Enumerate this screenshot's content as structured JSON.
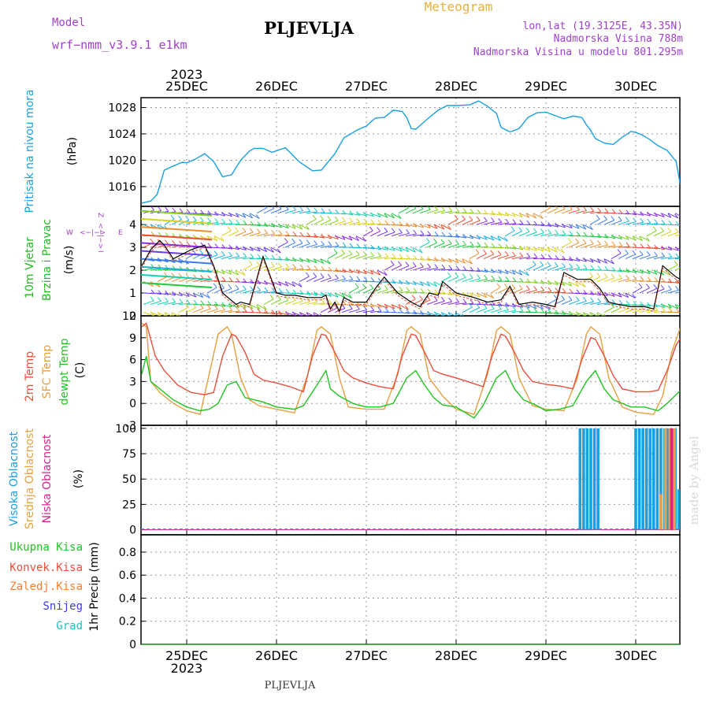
{
  "header": {
    "model_label": "Model",
    "model_value": "wrf−nmm_v3.9.1  e1km",
    "title": "PLJEVLJA",
    "meteogram_label": "Meteogram",
    "lonlat": "lon,lat (19.3125E, 43.35N)",
    "elevation": "Nadmorska Visina 788m",
    "model_elevation": "Nadmorska Visina u modelu 801.295m"
  },
  "top_axis": {
    "year": "2023",
    "days": [
      "25DEC",
      "26DEC",
      "27DEC",
      "28DEC",
      "29DEC",
      "30DEC"
    ]
  },
  "bottom_axis": {
    "year": "2023",
    "days": [
      "25DEC",
      "26DEC",
      "27DEC",
      "28DEC",
      "29DEC",
      "30DEC"
    ],
    "station": "PLJEVLJA"
  },
  "watermark": "made by Angel",
  "colors": {
    "pressure": "#1aa0e0",
    "temp2m": "#e8503c",
    "sfc": "#e8a040",
    "dewpt": "#22c322",
    "cloud_high": "#1aa0e0",
    "cloud_mid": "#e8a040",
    "cloud_low": "#e0208c",
    "rain_total": "#22c322",
    "rain_conv": "#e8503c",
    "rain_frozen": "#f08030",
    "snow": "#3c3ce0",
    "hail": "#20c0c0",
    "wind_label": "#22bb22",
    "compass": "#a040d0"
  },
  "panels": {
    "pressure": {
      "title": "Pritisak na nivou mora",
      "unit": "(hPa)"
    },
    "wind": {
      "title1": "10m Vjetar",
      "title2": "Brzina i Pravac",
      "unit": "(m/s)",
      "compass_w": "W",
      "compass_e": "E",
      "compass_arrow": "<−|−>",
      "compass_z": "Z",
      "compass_i": "I",
      "compass_arrow_v": "<−|−>"
    },
    "temp": {
      "label_2m": "2m Temp",
      "label_sfc": "SFC Temp",
      "label_dewpt": "dewpt Temp",
      "unit": "(C)"
    },
    "cloud": {
      "label_high": "Visoka Oblacnost",
      "label_mid": "Srednja Oblacnost",
      "label_low": "Niska Oblacnost",
      "unit": "(%)"
    },
    "precip": {
      "legend": [
        "Ukupna Kisa",
        "Konvek.Kisa",
        "Zaledj.Kisa",
        "Snijeg",
        "Grad"
      ],
      "unit": "1hr Precip (mm)"
    }
  },
  "chart_data": [
    {
      "type": "line",
      "title": "",
      "ylabel": "Pritisak na nivou mora (hPa)",
      "x_unit": "days from 25DEC 00UTC",
      "xlim": [
        -0.5,
        5.5
      ],
      "ylim": [
        1013,
        1029.5
      ],
      "yticks": [
        1016,
        1020,
        1024,
        1028
      ],
      "series": [
        {
          "name": "Pritisak na nivou mora",
          "x": [
            -0.5,
            -0.4,
            -0.33,
            -0.25,
            -0.17,
            -0.05,
            0.0,
            0.1,
            0.2,
            0.3,
            0.4,
            0.5,
            0.6,
            0.7,
            0.75,
            0.85,
            0.95,
            1.1,
            1.25,
            1.4,
            1.5,
            1.65,
            1.75,
            1.9,
            2.0,
            2.1,
            2.2,
            2.3,
            2.4,
            2.45,
            2.5,
            2.55,
            2.6,
            2.7,
            2.8,
            2.9,
            3.0,
            3.15,
            3.25,
            3.35,
            3.45,
            3.5,
            3.6,
            3.7,
            3.8,
            3.9,
            4.0,
            4.1,
            4.2,
            4.3,
            4.4,
            4.45,
            4.5,
            4.55,
            4.65,
            4.75,
            4.85,
            4.95,
            5.05,
            5.15,
            5.25,
            5.35,
            5.45,
            5.5
          ],
          "values": [
            1013.5,
            1013.8,
            1014.8,
            1018.5,
            1019.0,
            1019.7,
            1019.6,
            1020.2,
            1021.0,
            1019.8,
            1017.5,
            1017.8,
            1020.0,
            1021.4,
            1021.8,
            1021.8,
            1021.2,
            1021.9,
            1019.8,
            1018.4,
            1018.5,
            1021.0,
            1023.4,
            1024.6,
            1025.2,
            1026.4,
            1026.5,
            1027.6,
            1027.4,
            1026.5,
            1024.8,
            1024.7,
            1025.3,
            1026.5,
            1027.6,
            1028.3,
            1028.3,
            1028.4,
            1029.0,
            1028.2,
            1027.1,
            1025.0,
            1024.3,
            1024.8,
            1026.5,
            1027.2,
            1027.3,
            1026.8,
            1026.3,
            1026.7,
            1026.5,
            1025.4,
            1024.5,
            1023.3,
            1022.6,
            1022.4,
            1023.5,
            1024.4,
            1024.0,
            1023.2,
            1022.2,
            1021.5,
            1019.8,
            1016.0
          ]
        }
      ]
    },
    {
      "type": "line",
      "title": "",
      "ylabel": "10m Vjetar Brzina i Pravac (m/s)",
      "x_unit": "days from 25DEC 00UTC",
      "xlim": [
        -0.5,
        5.5
      ],
      "ylim": [
        0,
        4.8
      ],
      "yticks": [
        0,
        1,
        2,
        3,
        4
      ],
      "series": [
        {
          "name": "Brzina",
          "x": [
            -0.5,
            -0.4,
            -0.3,
            -0.25,
            -0.15,
            -0.05,
            0.05,
            0.2,
            0.3,
            0.4,
            0.55,
            0.6,
            0.7,
            0.85,
            1.0,
            1.1,
            1.2,
            1.35,
            1.5,
            1.55,
            1.6,
            1.65,
            1.7,
            1.75,
            1.85,
            2.0,
            2.1,
            2.2,
            2.35,
            2.5,
            2.6,
            2.7,
            2.8,
            2.85,
            3.0,
            3.1,
            3.2,
            3.35,
            3.5,
            3.6,
            3.7,
            3.85,
            4.0,
            4.1,
            4.2,
            4.35,
            4.5,
            4.6,
            4.7,
            4.8,
            4.95,
            5.1,
            5.2,
            5.3,
            5.45,
            5.5
          ],
          "values": [
            2.2,
            2.9,
            3.3,
            3.1,
            2.5,
            2.7,
            2.9,
            3.1,
            2.2,
            1.0,
            0.5,
            0.6,
            0.5,
            2.6,
            1.0,
            0.9,
            0.9,
            0.8,
            0.8,
            0.9,
            0.3,
            0.6,
            0.2,
            0.8,
            0.6,
            0.6,
            1.2,
            1.7,
            1.0,
            0.6,
            0.4,
            1.0,
            0.9,
            1.5,
            1.0,
            0.9,
            0.8,
            0.6,
            0.7,
            1.3,
            0.5,
            0.6,
            0.5,
            0.4,
            1.9,
            1.6,
            1.6,
            1.2,
            0.6,
            0.5,
            0.4,
            0.4,
            0.3,
            2.2,
            1.7,
            1.6
          ]
        }
      ]
    },
    {
      "type": "line",
      "title": "",
      "ylabel": "Temperature (C)",
      "x_unit": "days from 25DEC 00UTC",
      "xlim": [
        -0.5,
        5.5
      ],
      "ylim": [
        -3,
        12
      ],
      "yticks": [
        -3,
        0,
        3,
        6,
        9,
        12
      ],
      "series": [
        {
          "name": "2m Temp",
          "x": [
            -0.5,
            -0.45,
            -0.35,
            -0.25,
            -0.1,
            0.05,
            0.2,
            0.3,
            0.4,
            0.5,
            0.55,
            0.65,
            0.75,
            0.85,
            1.0,
            1.15,
            1.3,
            1.4,
            1.5,
            1.55,
            1.65,
            1.75,
            1.85,
            2.0,
            2.15,
            2.3,
            2.4,
            2.5,
            2.55,
            2.65,
            2.75,
            2.85,
            3.0,
            3.15,
            3.3,
            3.4,
            3.5,
            3.55,
            3.65,
            3.75,
            3.85,
            4.0,
            4.15,
            4.3,
            4.4,
            4.5,
            4.55,
            4.65,
            4.75,
            4.85,
            5.0,
            5.15,
            5.25,
            5.35,
            5.45,
            5.5
          ],
          "values": [
            10.5,
            11.0,
            6.5,
            4.5,
            2.5,
            1.5,
            1.2,
            1.5,
            6.5,
            9.5,
            9.2,
            7.0,
            4.0,
            3.2,
            2.8,
            2.3,
            1.6,
            6.5,
            9.5,
            9.3,
            7.0,
            4.5,
            3.5,
            2.8,
            2.3,
            2.0,
            6.5,
            9.5,
            9.3,
            7.0,
            4.5,
            4.0,
            3.5,
            2.9,
            2.3,
            6.5,
            9.5,
            9.2,
            7.0,
            4.5,
            3.0,
            2.6,
            2.4,
            2.0,
            6.0,
            9.0,
            8.8,
            6.5,
            3.8,
            2.0,
            1.6,
            1.6,
            1.8,
            4.5,
            8.0,
            9.0
          ]
        },
        {
          "name": "SFC Temp",
          "x": [
            -0.5,
            -0.45,
            -0.4,
            -0.3,
            -0.15,
            0.0,
            0.15,
            0.25,
            0.35,
            0.45,
            0.5,
            0.6,
            0.7,
            0.8,
            1.0,
            1.2,
            1.35,
            1.45,
            1.5,
            1.6,
            1.7,
            1.8,
            2.0,
            2.2,
            2.35,
            2.45,
            2.5,
            2.6,
            2.7,
            2.85,
            3.0,
            3.2,
            3.35,
            3.45,
            3.5,
            3.6,
            3.7,
            3.85,
            4.0,
            4.2,
            4.35,
            4.45,
            4.5,
            4.6,
            4.7,
            4.85,
            5.0,
            5.2,
            5.3,
            5.4,
            5.5
          ],
          "values": [
            11.0,
            10.5,
            3.0,
            1.5,
            0.0,
            -1.0,
            -1.5,
            4.0,
            9.5,
            10.5,
            9.5,
            3.5,
            0.5,
            -0.3,
            -0.8,
            -1.3,
            4.0,
            10.0,
            10.5,
            9.5,
            3.5,
            -0.5,
            -0.8,
            -0.8,
            4.0,
            10.0,
            10.5,
            9.5,
            3.5,
            1.0,
            -0.8,
            -1.5,
            4.0,
            10.0,
            10.5,
            9.5,
            3.5,
            -0.3,
            -0.8,
            -1.0,
            3.5,
            9.5,
            10.5,
            9.5,
            3.5,
            -0.5,
            -1.2,
            -1.5,
            1.0,
            7.0,
            10.5
          ]
        },
        {
          "name": "dewpt Temp",
          "x": [
            -0.5,
            -0.45,
            -0.4,
            -0.3,
            -0.15,
            0.0,
            0.15,
            0.25,
            0.35,
            0.45,
            0.55,
            0.65,
            0.75,
            0.85,
            1.0,
            1.2,
            1.3,
            1.45,
            1.55,
            1.6,
            1.7,
            1.85,
            2.0,
            2.15,
            2.3,
            2.45,
            2.55,
            2.65,
            2.75,
            2.85,
            3.0,
            3.2,
            3.3,
            3.45,
            3.55,
            3.65,
            3.75,
            3.9,
            4.0,
            4.15,
            4.3,
            4.45,
            4.55,
            4.65,
            4.75,
            4.95,
            5.1,
            5.25,
            5.35,
            5.5
          ],
          "values": [
            4.0,
            6.5,
            3.0,
            2.0,
            0.5,
            -0.5,
            -1.0,
            -0.8,
            0.0,
            2.5,
            3.0,
            0.8,
            0.5,
            0.2,
            -0.5,
            -0.8,
            -0.3,
            2.5,
            4.5,
            2.0,
            1.0,
            0.0,
            -0.5,
            -0.5,
            0.0,
            3.5,
            4.5,
            2.5,
            0.8,
            -0.2,
            -0.5,
            -2.0,
            -0.3,
            3.5,
            4.5,
            2.0,
            0.5,
            -0.3,
            -1.0,
            -0.8,
            -0.3,
            3.0,
            4.5,
            2.0,
            0.5,
            -0.5,
            -0.5,
            -1.0,
            0.0,
            1.8
          ]
        }
      ]
    },
    {
      "type": "bar",
      "title": "",
      "ylabel": "Oblacnost (%)",
      "x_unit": "days from 25DEC 00UTC",
      "xlim": [
        -0.5,
        5.5
      ],
      "ylim": [
        -5,
        103
      ],
      "yticks": [
        0,
        25,
        50,
        75,
        100
      ],
      "series": [
        {
          "name": "Visoka Oblacnost",
          "x": [
            4.38,
            4.42,
            4.46,
            4.5,
            4.54,
            4.58,
            5.0,
            5.04,
            5.08,
            5.12,
            5.16,
            5.2,
            5.24,
            5.28,
            5.32,
            5.36,
            5.4,
            5.44,
            5.48
          ],
          "values": [
            100,
            100,
            100,
            100,
            100,
            100,
            100,
            100,
            100,
            100,
            100,
            100,
            100,
            100,
            100,
            100,
            100,
            100,
            40
          ]
        },
        {
          "name": "Srednja Oblacnost",
          "x": [
            5.28,
            5.33,
            5.38,
            5.43
          ],
          "values": [
            35,
            100,
            100,
            100
          ]
        },
        {
          "name": "Niska Oblacnost",
          "x": [
            5.4
          ],
          "values": [
            100
          ]
        }
      ]
    },
    {
      "type": "bar",
      "title": "",
      "ylabel": "1hr Precip (mm)",
      "x_unit": "days from 25DEC 00UTC",
      "xlim": [
        -0.5,
        5.5
      ],
      "ylim": [
        0,
        0.95
      ],
      "yticks": [
        0,
        0.2,
        0.4,
        0.6,
        0.8
      ],
      "series": [
        {
          "name": "Ukupna Kisa",
          "x": [],
          "values": []
        }
      ]
    }
  ]
}
